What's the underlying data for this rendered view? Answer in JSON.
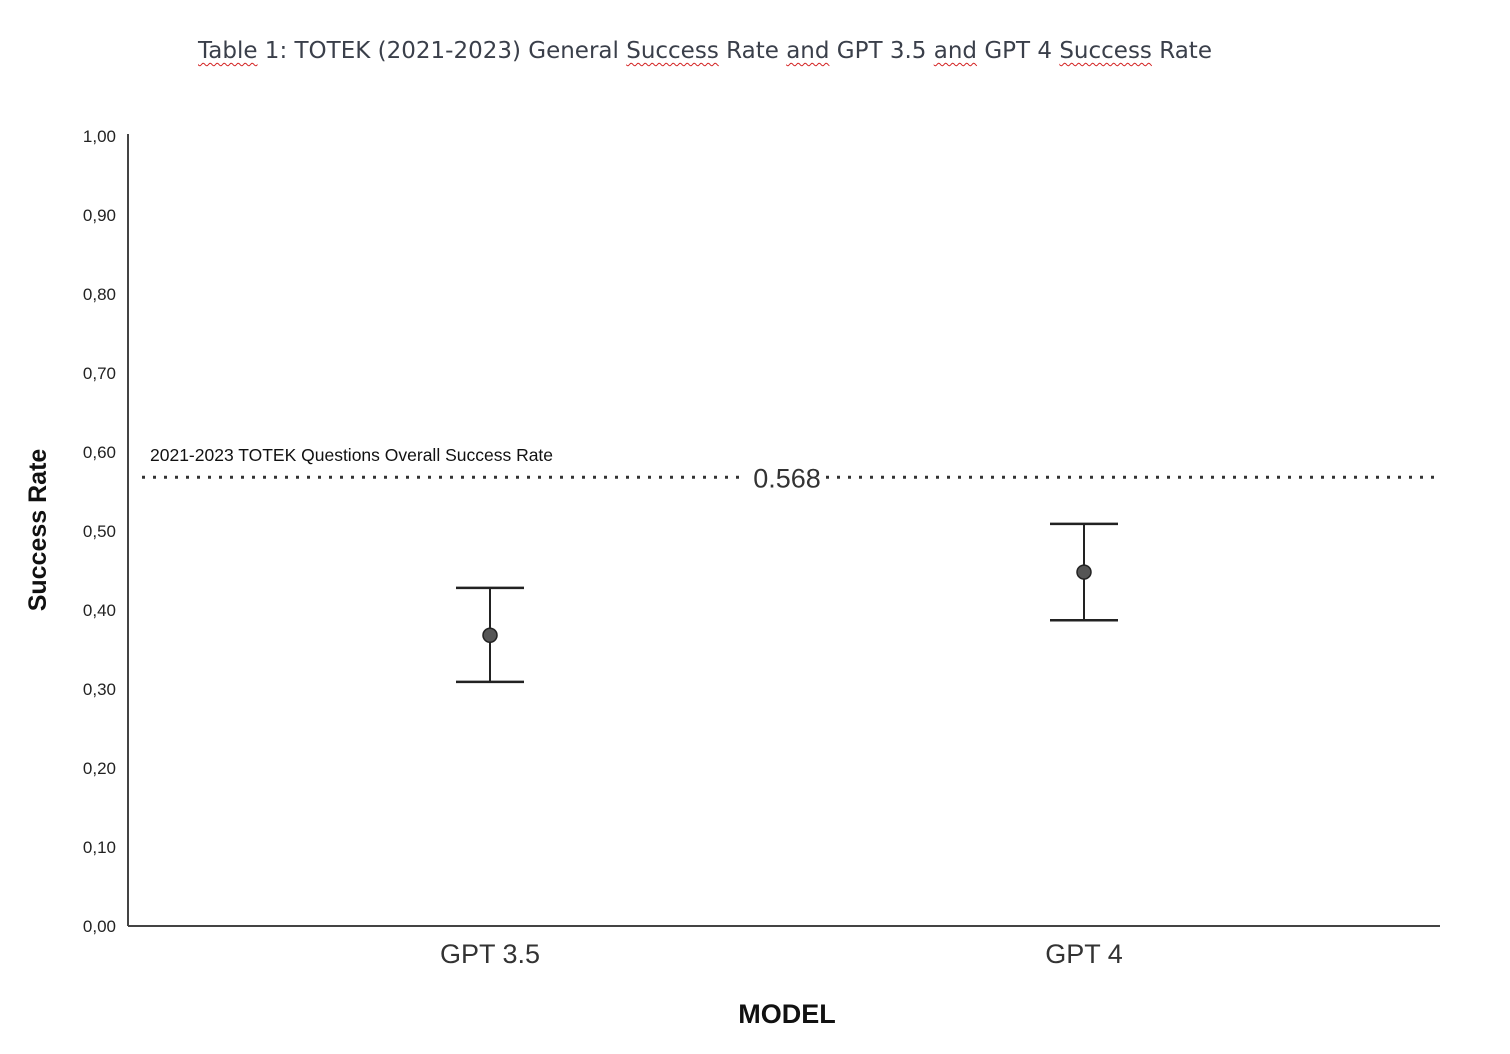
{
  "title_segments": [
    {
      "text": "Table",
      "spellcheck": true
    },
    {
      "text": " 1: TOTEK (2021-2023) General ",
      "spellcheck": false
    },
    {
      "text": "Success",
      "spellcheck": true
    },
    {
      "text": " Rate ",
      "spellcheck": false
    },
    {
      "text": "and",
      "spellcheck": true
    },
    {
      "text": " GPT 3.5 ",
      "spellcheck": false
    },
    {
      "text": "and",
      "spellcheck": true
    },
    {
      "text": " GPT 4 ",
      "spellcheck": false
    },
    {
      "text": "Success",
      "spellcheck": true
    },
    {
      "text": " Rate",
      "spellcheck": false
    }
  ],
  "chart_data": {
    "type": "errorbar",
    "title": "Table 1: TOTEK (2021-2023) General Success Rate and GPT 3.5 and GPT 4 Success Rate",
    "xlabel": "MODEL",
    "ylabel": "Success Rate",
    "ylim": [
      0,
      1
    ],
    "yticks": [
      "0,00",
      "0,10",
      "0,20",
      "0,30",
      "0,40",
      "0,50",
      "0,60",
      "0,70",
      "0,80",
      "0,90",
      "1,00"
    ],
    "grid": false,
    "categories": [
      "GPT 3.5",
      "GPT 4"
    ],
    "mean": [
      0.368,
      0.448
    ],
    "lower": [
      0.309,
      0.387
    ],
    "upper": [
      0.428,
      0.509
    ],
    "reference_line": {
      "value": 0.568,
      "label": "0.568",
      "annotation": "2021-2023 TOTEK Questions Overall Success Rate",
      "style": "dotted"
    },
    "marker_color": "#555555",
    "line_color": "#222222"
  }
}
